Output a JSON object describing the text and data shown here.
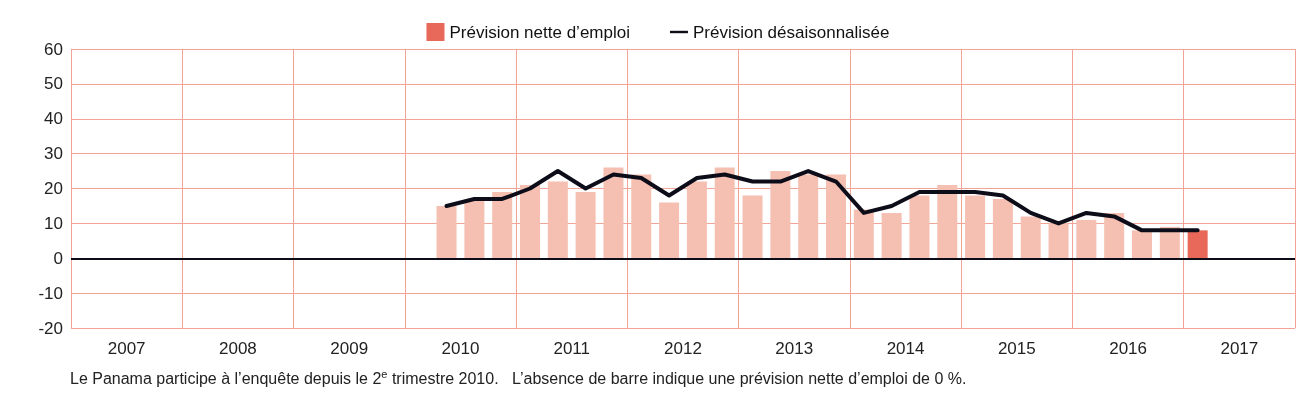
{
  "chart_data": {
    "type": "bar",
    "x": [
      2010.375,
      2010.625,
      2010.875,
      2011.125,
      2011.375,
      2011.625,
      2011.875,
      2012.125,
      2012.375,
      2012.625,
      2012.875,
      2013.125,
      2013.375,
      2013.625,
      2013.875,
      2014.125,
      2014.375,
      2014.625,
      2014.875,
      2015.125,
      2015.375,
      2015.625,
      2015.875,
      2016.125,
      2016.375,
      2016.625,
      2016.875,
      2017.125
    ],
    "series": [
      {
        "name": "Prévision nette d’emploi",
        "color": "#e8695a",
        "colors": [
          "#f5c0b2",
          "#f5c0b2",
          "#f5c0b2",
          "#f5c0b2",
          "#f5c0b2",
          "#f5c0b2",
          "#f5c0b2",
          "#f5c0b2",
          "#f5c0b2",
          "#f5c0b2",
          "#f5c0b2",
          "#f5c0b2",
          "#f5c0b2",
          "#f5c0b2",
          "#f5c0b2",
          "#f5c0b2",
          "#f5c0b2",
          "#f5c0b2",
          "#f5c0b2",
          "#f5c0b2",
          "#f5c0b2",
          "#f5c0b2",
          "#f5c0b2",
          "#f5c0b2",
          "#f5c0b2",
          "#f5c0b2",
          "#f5c0b2",
          "#e8695a"
        ],
        "values": [
          15,
          17,
          19,
          21,
          22,
          19,
          26,
          24,
          16,
          22,
          26,
          18,
          25,
          24,
          24,
          14,
          13,
          18,
          21,
          18,
          17,
          12,
          10,
          11,
          13,
          8,
          9,
          8
        ]
      },
      {
        "name": "Prévision désaisonnalisée",
        "type": "line",
        "color": "#0d0d1a",
        "marker": "none",
        "values": [
          15,
          17,
          17,
          20,
          25,
          20,
          24,
          23,
          18,
          23,
          24,
          22,
          22,
          25,
          22,
          13,
          15,
          19,
          19,
          19,
          18,
          13,
          10,
          13,
          12,
          8,
          8,
          8
        ]
      }
    ],
    "xlim": [
      2007,
      2018
    ],
    "xticks": [
      {
        "value": 2007,
        "label": null
      },
      {
        "value": 2007.5,
        "label": "2007"
      },
      {
        "value": 2008,
        "label": null
      },
      {
        "value": 2008.5,
        "label": "2008"
      },
      {
        "value": 2009,
        "label": null
      },
      {
        "value": 2009.5,
        "label": "2009"
      },
      {
        "value": 2010,
        "label": null
      },
      {
        "value": 2010.5,
        "label": "2010"
      },
      {
        "value": 2011,
        "label": null
      },
      {
        "value": 2011.5,
        "label": "2011"
      },
      {
        "value": 2012,
        "label": null
      },
      {
        "value": 2012.5,
        "label": "2012"
      },
      {
        "value": 2013,
        "label": null
      },
      {
        "value": 2013.5,
        "label": "2013"
      },
      {
        "value": 2014,
        "label": null
      },
      {
        "value": 2014.5,
        "label": "2014"
      },
      {
        "value": 2015,
        "label": null
      },
      {
        "value": 2015.5,
        "label": "2015"
      },
      {
        "value": 2016,
        "label": null
      },
      {
        "value": 2016.5,
        "label": "2016"
      },
      {
        "value": 2017,
        "label": null
      },
      {
        "value": 2017.5,
        "label": "2017"
      },
      {
        "value": 2018,
        "label": null
      }
    ],
    "ylim": [
      -20,
      60
    ],
    "yticks": [
      -20,
      -10,
      0,
      10,
      20,
      30,
      40,
      50,
      60
    ],
    "grid": true,
    "legend": "top",
    "ref_lines": [
      {
        "axis": "y",
        "value": 0,
        "label": null,
        "color": "#0d0d1a"
      }
    ],
    "annotations": [
      "Le Panama participe à l’enquête depuis le 2$^{e}$ trimestre 2010.",
      "L’absence de barre indique une prévision nette d’emploi de 0 %."
    ]
  }
}
